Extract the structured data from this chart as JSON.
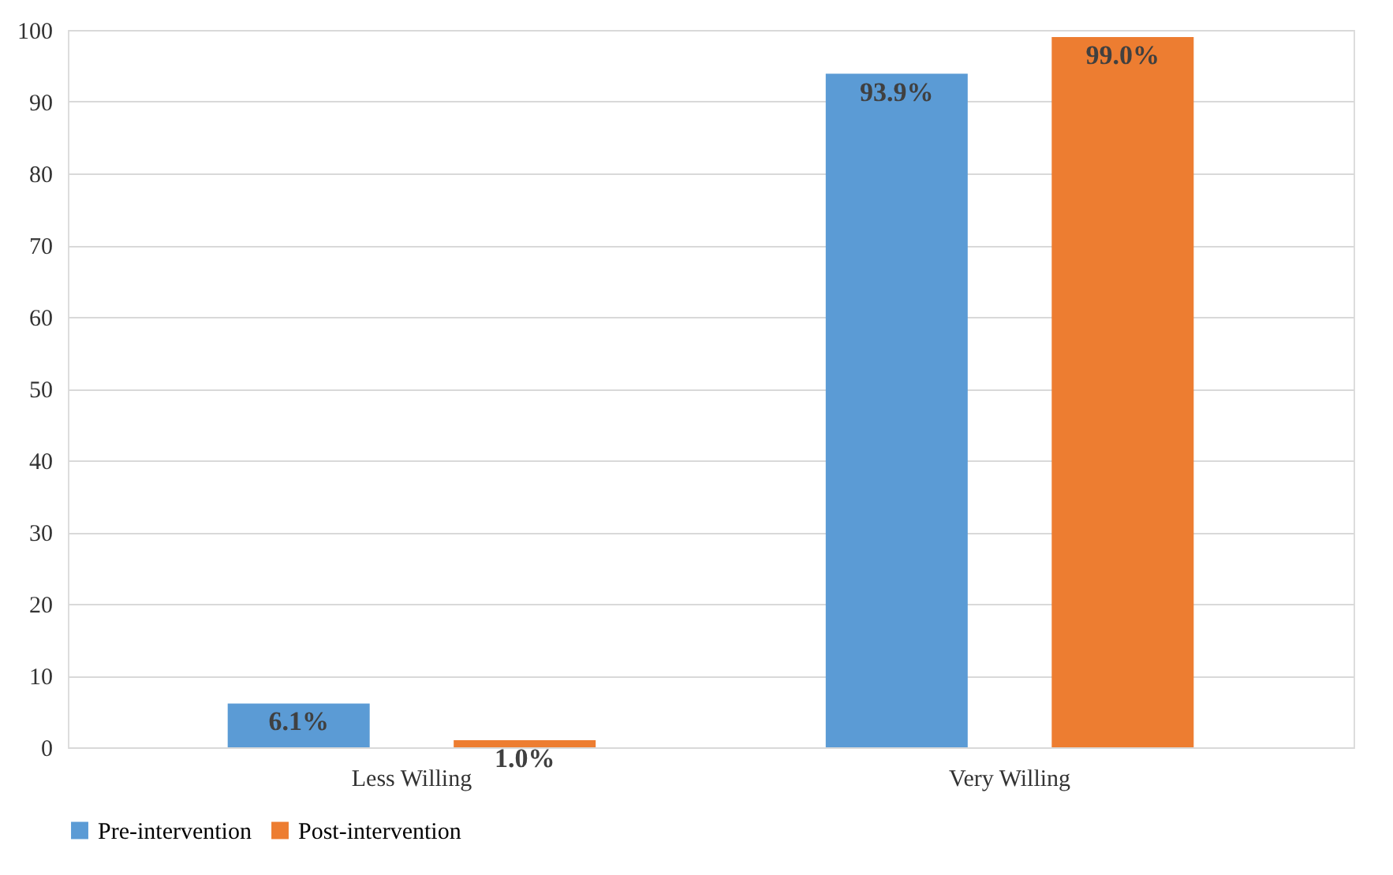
{
  "chart_data": {
    "type": "bar",
    "categories": [
      "Less Willing",
      "Very Willing"
    ],
    "series": [
      {
        "name": "Pre-intervention",
        "color": "#5b9bd5",
        "values": [
          6.1,
          93.9
        ],
        "value_labels": [
          "6.1%",
          "93.9%"
        ]
      },
      {
        "name": "Post-intervention",
        "color": "#ed7d31",
        "values": [
          1.0,
          99.0
        ],
        "value_labels": [
          "1.0%",
          "99.0%"
        ]
      }
    ],
    "ylim": [
      0,
      100
    ],
    "yticks": [
      0,
      10,
      20,
      30,
      40,
      50,
      60,
      70,
      80,
      90,
      100
    ],
    "grid": "y",
    "legend": "bottom"
  }
}
